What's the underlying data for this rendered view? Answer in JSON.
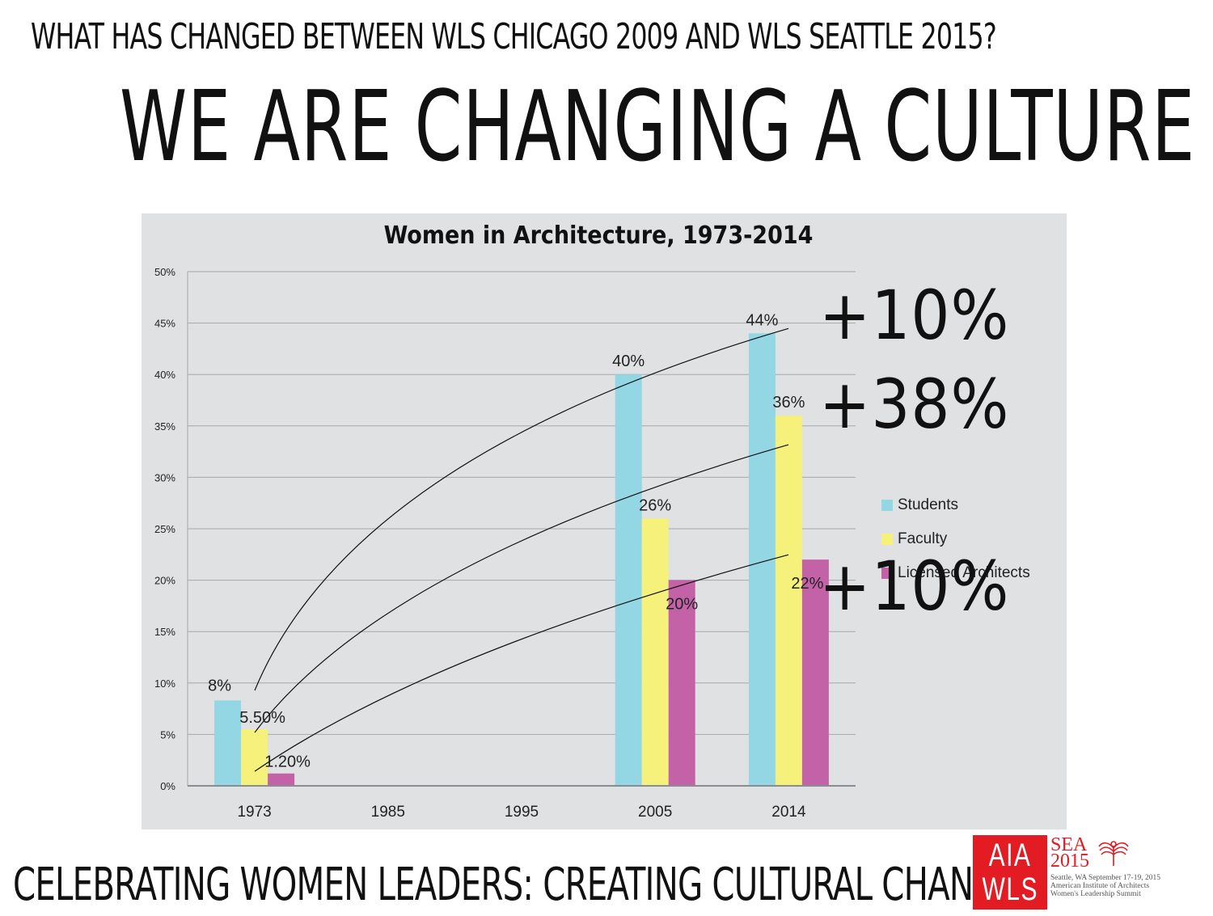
{
  "header": {
    "question": "WHAT HAS CHANGED BETWEEN WLS CHICAGO 2009 AND WLS SEATTLE 2015?",
    "title": "WE ARE CHANGING A CULTURE"
  },
  "footer": {
    "tagline": "CELEBRATING WOMEN LEADERS:  CREATING CULTURAL CHANGE"
  },
  "logo": {
    "left_top": "AIA",
    "left_bottom": "WLS",
    "event": "SEA",
    "year": "2015",
    "line1": "Seattle, WA  September 17-19, 2015",
    "line2": "American Institute of Architects",
    "line3": "Women's Leadership Summit"
  },
  "colors": {
    "panel_bg": "#dfe1e2",
    "students": "#92d7e3",
    "faculty": "#f5f17b",
    "licensed": "#c462a8",
    "grid": "#a5a8aa",
    "logo_red": "#e31b23"
  },
  "chart_data": {
    "type": "bar",
    "title": "Women in Architecture, 1973-2014",
    "xlabel": "",
    "ylabel": "",
    "categories": [
      "1973",
      "1985",
      "1995",
      "2005",
      "2014"
    ],
    "ylim": [
      0,
      50
    ],
    "yticks": [
      "0%",
      "5%",
      "10%",
      "15%",
      "20%",
      "25%",
      "30%",
      "35%",
      "40%",
      "45%",
      "50%"
    ],
    "grid": true,
    "legend_position": "right",
    "series": [
      {
        "name": "Students",
        "values": [
          8.3,
          null,
          null,
          40,
          44
        ],
        "labels": [
          "8%",
          "",
          "",
          "40%",
          "44%"
        ]
      },
      {
        "name": "Faculty",
        "values": [
          5.5,
          null,
          null,
          26,
          36
        ],
        "labels": [
          "5.50%",
          "",
          "",
          "26%",
          "36%"
        ]
      },
      {
        "name": "Licensed Architects",
        "values": [
          1.2,
          null,
          null,
          20,
          22
        ],
        "labels": [
          "1.20%",
          "",
          "",
          "20%",
          "22%"
        ]
      }
    ],
    "annotations": [
      {
        "series": "Students",
        "text": "+10%"
      },
      {
        "series": "Faculty",
        "text": "+38%"
      },
      {
        "series": "Licensed Architects",
        "text": "+10%"
      }
    ]
  }
}
